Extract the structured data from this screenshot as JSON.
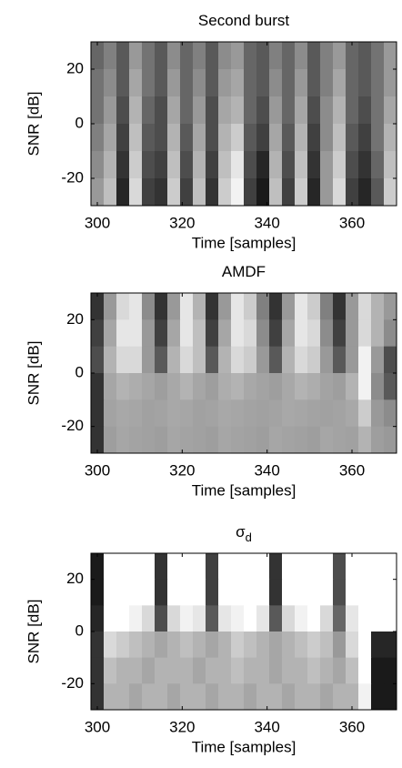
{
  "chart_data": [
    {
      "type": "heatmap",
      "title": "Second burst",
      "xlabel": "Time [samples]",
      "ylabel": "SNR [dB]",
      "colormap": "gray",
      "x": [
        300,
        303,
        306,
        309,
        312,
        315,
        318,
        321,
        324,
        327,
        330,
        333,
        336,
        339,
        342,
        345,
        348,
        351,
        354,
        357,
        360,
        363,
        366,
        369
      ],
      "y": [
        25,
        15,
        5,
        -5,
        -15,
        -25
      ],
      "z": [
        [
          0.4,
          0.5,
          0.35,
          0.6,
          0.45,
          0.35,
          0.55,
          0.4,
          0.5,
          0.35,
          0.55,
          0.6,
          0.4,
          0.35,
          0.5,
          0.4,
          0.55,
          0.35,
          0.5,
          0.6,
          0.4,
          0.35,
          0.45,
          0.6
        ],
        [
          0.45,
          0.55,
          0.35,
          0.65,
          0.45,
          0.35,
          0.6,
          0.4,
          0.55,
          0.35,
          0.6,
          0.65,
          0.4,
          0.35,
          0.55,
          0.4,
          0.6,
          0.35,
          0.5,
          0.65,
          0.4,
          0.35,
          0.45,
          0.6
        ],
        [
          0.45,
          0.6,
          0.3,
          0.7,
          0.4,
          0.3,
          0.65,
          0.4,
          0.6,
          0.3,
          0.65,
          0.7,
          0.4,
          0.3,
          0.6,
          0.4,
          0.65,
          0.3,
          0.55,
          0.7,
          0.4,
          0.3,
          0.45,
          0.65
        ],
        [
          0.5,
          0.65,
          0.25,
          0.75,
          0.35,
          0.3,
          0.7,
          0.35,
          0.65,
          0.3,
          0.7,
          0.8,
          0.35,
          0.25,
          0.65,
          0.35,
          0.7,
          0.25,
          0.55,
          0.75,
          0.35,
          0.25,
          0.45,
          0.7
        ],
        [
          0.55,
          0.7,
          0.2,
          0.8,
          0.3,
          0.25,
          0.75,
          0.3,
          0.7,
          0.25,
          0.75,
          0.9,
          0.3,
          0.15,
          0.7,
          0.3,
          0.75,
          0.2,
          0.6,
          0.8,
          0.3,
          0.2,
          0.4,
          0.75
        ],
        [
          0.6,
          0.75,
          0.15,
          0.85,
          0.25,
          0.2,
          0.8,
          0.25,
          0.75,
          0.2,
          0.8,
          0.95,
          0.25,
          0.1,
          0.75,
          0.25,
          0.8,
          0.15,
          0.6,
          0.85,
          0.25,
          0.15,
          0.35,
          0.8
        ]
      ],
      "xlim": [
        298.5,
        370.5
      ],
      "ylim": [
        -30,
        30
      ],
      "xticks": [
        300,
        320,
        340,
        360
      ],
      "yticks": [
        -20,
        0,
        20
      ]
    },
    {
      "type": "heatmap",
      "title": "AMDF",
      "xlabel": "Time [samples]",
      "ylabel": "SNR [dB]",
      "colormap": "gray",
      "x": [
        300,
        303,
        306,
        309,
        312,
        315,
        318,
        321,
        324,
        327,
        330,
        333,
        336,
        339,
        342,
        345,
        348,
        351,
        354,
        357,
        360,
        363,
        366,
        369
      ],
      "y": [
        25,
        15,
        5,
        -5,
        -15,
        -25
      ],
      "z": [
        [
          0.2,
          0.6,
          0.85,
          0.9,
          0.55,
          0.2,
          0.6,
          0.9,
          0.7,
          0.2,
          0.6,
          0.9,
          0.8,
          0.5,
          0.2,
          0.6,
          0.9,
          0.8,
          0.5,
          0.2,
          0.6,
          0.85,
          0.7,
          0.6
        ],
        [
          0.25,
          0.65,
          0.9,
          0.9,
          0.6,
          0.25,
          0.65,
          0.9,
          0.75,
          0.25,
          0.65,
          0.9,
          0.85,
          0.55,
          0.25,
          0.65,
          0.9,
          0.85,
          0.55,
          0.25,
          0.6,
          0.85,
          0.7,
          0.55
        ],
        [
          0.3,
          0.7,
          0.85,
          0.85,
          0.6,
          0.35,
          0.7,
          0.85,
          0.75,
          0.35,
          0.7,
          0.85,
          0.8,
          0.6,
          0.35,
          0.7,
          0.85,
          0.8,
          0.6,
          0.35,
          0.6,
          0.95,
          0.6,
          0.3
        ],
        [
          0.2,
          0.65,
          0.7,
          0.68,
          0.65,
          0.62,
          0.66,
          0.7,
          0.65,
          0.62,
          0.68,
          0.7,
          0.66,
          0.64,
          0.62,
          0.66,
          0.7,
          0.68,
          0.64,
          0.62,
          0.7,
          0.95,
          0.55,
          0.35
        ],
        [
          0.2,
          0.64,
          0.66,
          0.65,
          0.63,
          0.64,
          0.66,
          0.65,
          0.63,
          0.64,
          0.66,
          0.65,
          0.64,
          0.63,
          0.64,
          0.66,
          0.65,
          0.64,
          0.63,
          0.64,
          0.66,
          0.8,
          0.6,
          0.55
        ],
        [
          0.2,
          0.62,
          0.65,
          0.64,
          0.63,
          0.62,
          0.65,
          0.64,
          0.63,
          0.62,
          0.65,
          0.64,
          0.63,
          0.62,
          0.65,
          0.64,
          0.63,
          0.62,
          0.65,
          0.64,
          0.63,
          0.7,
          0.62,
          0.6
        ]
      ],
      "xlim": [
        298.5,
        370.5
      ],
      "ylim": [
        -30,
        30
      ],
      "xticks": [
        300,
        320,
        340,
        360
      ],
      "yticks": [
        -20,
        0,
        20
      ]
    },
    {
      "type": "heatmap",
      "title": "σ",
      "title_subscript": "d",
      "xlabel": "Time [samples]",
      "ylabel": "SNR [dB]",
      "colormap": "gray",
      "x": [
        300,
        303,
        306,
        309,
        312,
        315,
        318,
        321,
        324,
        327,
        330,
        333,
        336,
        339,
        342,
        345,
        348,
        351,
        354,
        357,
        360,
        363,
        366,
        369
      ],
      "y": [
        25,
        15,
        5,
        -5,
        -15,
        -25
      ],
      "z": [
        [
          0.1,
          1,
          1,
          1,
          1,
          0.2,
          1,
          1,
          1,
          0.25,
          1,
          1,
          1,
          1,
          0.2,
          1,
          1,
          1,
          1,
          0.3,
          1,
          1,
          1,
          1
        ],
        [
          0.1,
          1,
          1,
          1,
          1,
          0.2,
          1,
          1,
          1,
          0.25,
          1,
          1,
          1,
          1,
          0.2,
          1,
          1,
          1,
          1,
          0.3,
          1,
          1,
          1,
          1
        ],
        [
          0.15,
          1,
          1,
          0.95,
          0.85,
          0.3,
          0.85,
          0.95,
          0.9,
          0.35,
          0.9,
          0.95,
          1,
          0.9,
          0.35,
          0.85,
          0.95,
          1,
          0.85,
          0.4,
          0.9,
          1,
          1,
          1
        ],
        [
          0.2,
          0.85,
          0.8,
          0.75,
          0.7,
          0.65,
          0.7,
          0.75,
          0.7,
          0.65,
          0.7,
          0.8,
          0.75,
          0.7,
          0.65,
          0.7,
          0.75,
          0.8,
          0.75,
          0.6,
          0.85,
          1,
          0.15,
          0.15
        ],
        [
          0.2,
          0.75,
          0.7,
          0.7,
          0.65,
          0.7,
          0.7,
          0.7,
          0.65,
          0.7,
          0.7,
          0.75,
          0.7,
          0.7,
          0.65,
          0.7,
          0.7,
          0.75,
          0.7,
          0.65,
          0.75,
          1,
          0.1,
          0.1
        ],
        [
          0.2,
          0.7,
          0.7,
          0.65,
          0.7,
          0.7,
          0.65,
          0.7,
          0.7,
          0.65,
          0.7,
          0.7,
          0.65,
          0.7,
          0.7,
          0.65,
          0.7,
          0.7,
          0.65,
          0.7,
          0.7,
          0.95,
          0.1,
          0.1
        ]
      ],
      "xlim": [
        298.5,
        370.5
      ],
      "ylim": [
        -30,
        30
      ],
      "xticks": [
        300,
        320,
        340,
        360
      ],
      "yticks": [
        -20,
        0,
        20
      ]
    }
  ]
}
